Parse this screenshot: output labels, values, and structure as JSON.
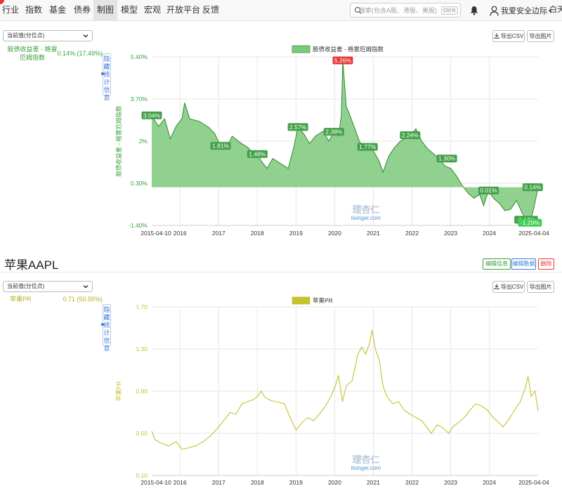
{
  "nav": {
    "items": [
      "行业",
      "指数",
      "基金",
      "债券",
      "制图",
      "模型",
      "宏观",
      "开放平台",
      "反馈"
    ],
    "active_index": 4,
    "search_placeholder": "搜索(包含A股、港股、美股)",
    "shortcut": "Ctrl K",
    "user_name": "我爱安全边际",
    "theme_label": "白天"
  },
  "panel1": {
    "select_value": "当前值(分位点)",
    "legend_label": "股债收益差 - 格雷厄姆指数",
    "legend_value": "0.14% (17.49%)",
    "hide_stats": "隐藏统计信息",
    "export_csv": "导出CSV",
    "export_img": "导出图片"
  },
  "section": {
    "title": "苹果AAPL",
    "edit_info": "编辑信息",
    "edit_data": "编辑数据",
    "delete": "删除"
  },
  "panel2": {
    "select_value": "当前值(分位点)",
    "legend_label": "苹果PR",
    "legend_value": "0.71 (50.55%)",
    "hide_stats": "隐藏统计信息",
    "export_csv": "导出CSV",
    "export_img": "导出图片"
  },
  "watermark": {
    "cn": "理杏仁",
    "en": "lixinger.com"
  },
  "colors": {
    "green": "#3aa03a",
    "green_fill": "#7cc97c",
    "yellow": "#c6c12e",
    "red": "#e53935",
    "blue": "#3a78d8"
  },
  "chart_data": [
    {
      "type": "area",
      "legend": "股债收益差 - 格雷厄姆指数",
      "ylabel": "股债收益差 - 格雷厄姆指数",
      "xlabel": "",
      "yticks": [
        "5.40%",
        "3.70%",
        "2%",
        "0.30%",
        "-1.40%"
      ],
      "ylim": [
        -1.4,
        5.4
      ],
      "baseline": 0.14,
      "xticks": [
        "2015-04-10",
        "2016",
        "2017",
        "2018",
        "2019",
        "2020",
        "2021",
        "2022",
        "2023",
        "2024",
        "2025-04-04"
      ],
      "x_range": [
        2015.27,
        2025.26
      ],
      "points": [
        [
          2015.27,
          3.0
        ],
        [
          2015.45,
          2.6
        ],
        [
          2015.6,
          2.9
        ],
        [
          2015.75,
          2.1
        ],
        [
          2015.9,
          2.6
        ],
        [
          2016.05,
          2.9
        ],
        [
          2016.12,
          3.55
        ],
        [
          2016.25,
          2.9
        ],
        [
          2016.5,
          2.8
        ],
        [
          2016.75,
          2.55
        ],
        [
          2016.9,
          2.3
        ],
        [
          2017.05,
          1.81
        ],
        [
          2017.2,
          1.7
        ],
        [
          2017.35,
          2.2
        ],
        [
          2017.55,
          1.95
        ],
        [
          2017.75,
          1.75
        ],
        [
          2017.9,
          1.5
        ],
        [
          2018.0,
          1.48
        ],
        [
          2018.1,
          1.2
        ],
        [
          2018.25,
          0.9
        ],
        [
          2018.4,
          1.3
        ],
        [
          2018.6,
          1.1
        ],
        [
          2018.8,
          0.9
        ],
        [
          2018.95,
          1.8
        ],
        [
          2019.05,
          2.57
        ],
        [
          2019.2,
          2.3
        ],
        [
          2019.35,
          1.9
        ],
        [
          2019.5,
          2.2
        ],
        [
          2019.7,
          2.4
        ],
        [
          2019.85,
          2.0
        ],
        [
          2019.98,
          2.38
        ],
        [
          2020.1,
          2.2
        ],
        [
          2020.17,
          3.0
        ],
        [
          2020.21,
          5.26
        ],
        [
          2020.3,
          3.4
        ],
        [
          2020.38,
          3.1
        ],
        [
          2020.5,
          2.6
        ],
        [
          2020.65,
          1.95
        ],
        [
          2020.85,
          1.77
        ],
        [
          2021.0,
          1.6
        ],
        [
          2021.15,
          1.2
        ],
        [
          2021.25,
          0.75
        ],
        [
          2021.4,
          1.4
        ],
        [
          2021.55,
          1.75
        ],
        [
          2021.7,
          2.0
        ],
        [
          2021.85,
          2.15
        ],
        [
          2021.95,
          2.24
        ],
        [
          2022.1,
          2.5
        ],
        [
          2022.25,
          2.0
        ],
        [
          2022.4,
          1.7
        ],
        [
          2022.55,
          1.5
        ],
        [
          2022.7,
          1.3
        ],
        [
          2022.85,
          1.0
        ],
        [
          2023.0,
          0.9
        ],
        [
          2023.15,
          0.6
        ],
        [
          2023.3,
          0.2
        ],
        [
          2023.45,
          -0.1
        ],
        [
          2023.6,
          -0.3
        ],
        [
          2023.75,
          -0.15
        ],
        [
          2023.85,
          -0.6
        ],
        [
          2023.98,
          0.01
        ],
        [
          2024.1,
          -0.3
        ],
        [
          2024.25,
          -0.5
        ],
        [
          2024.4,
          -0.8
        ],
        [
          2024.55,
          -0.75
        ],
        [
          2024.7,
          -0.4
        ],
        [
          2024.85,
          -0.9
        ],
        [
          2024.95,
          -1.17
        ],
        [
          2025.05,
          -1.29
        ],
        [
          2025.15,
          -0.7
        ],
        [
          2025.26,
          0.14
        ]
      ],
      "labels": [
        {
          "x": 2015.27,
          "y": 3.04,
          "text": "3.04%"
        },
        {
          "x": 2017.05,
          "y": 1.81,
          "text": "1.81%"
        },
        {
          "x": 2018.0,
          "y": 1.48,
          "text": "1.48%"
        },
        {
          "x": 2019.05,
          "y": 2.57,
          "text": "2.57%"
        },
        {
          "x": 2019.98,
          "y": 2.38,
          "text": "2.38%"
        },
        {
          "x": 2020.21,
          "y": 5.26,
          "text": "5.26%",
          "kind": "max"
        },
        {
          "x": 2020.85,
          "y": 1.77,
          "text": "1.77%"
        },
        {
          "x": 2021.95,
          "y": 2.24,
          "text": "2.24%"
        },
        {
          "x": 2022.9,
          "y": 1.3,
          "text": "1.30%"
        },
        {
          "x": 2023.98,
          "y": 0.01,
          "text": "0.01%"
        },
        {
          "x": 2025.12,
          "y": 0.14,
          "text": "0.14%"
        },
        {
          "x": 2024.95,
          "y": -1.17,
          "text": "-1.17%"
        },
        {
          "x": 2025.05,
          "y": -1.29,
          "text": "-1.29%",
          "kind": "min"
        }
      ]
    },
    {
      "type": "line",
      "legend": "苹果PR",
      "ylabel": "苹果PR",
      "xlabel": "",
      "yticks": [
        "1.70",
        "1.30",
        "0.90",
        "0.50",
        "0.10"
      ],
      "ylim": [
        0.1,
        1.7
      ],
      "xticks": [
        "2015-04-10",
        "2016",
        "2017",
        "2018",
        "2019",
        "2020",
        "2021",
        "2022",
        "2023",
        "2024",
        "2025-04-04"
      ],
      "x_range": [
        2015.27,
        2025.26
      ],
      "points": [
        [
          2015.27,
          0.52
        ],
        [
          2015.35,
          0.44
        ],
        [
          2015.5,
          0.41
        ],
        [
          2015.7,
          0.38
        ],
        [
          2015.9,
          0.42
        ],
        [
          2016.05,
          0.35
        ],
        [
          2016.2,
          0.36
        ],
        [
          2016.4,
          0.38
        ],
        [
          2016.6,
          0.42
        ],
        [
          2016.8,
          0.48
        ],
        [
          2017.0,
          0.56
        ],
        [
          2017.15,
          0.63
        ],
        [
          2017.3,
          0.7
        ],
        [
          2017.45,
          0.68
        ],
        [
          2017.6,
          0.78
        ],
        [
          2017.75,
          0.8
        ],
        [
          2017.9,
          0.82
        ],
        [
          2018.0,
          0.85
        ],
        [
          2018.1,
          0.9
        ],
        [
          2018.2,
          0.84
        ],
        [
          2018.35,
          0.81
        ],
        [
          2018.5,
          0.8
        ],
        [
          2018.7,
          0.78
        ],
        [
          2018.85,
          0.65
        ],
        [
          2019.0,
          0.53
        ],
        [
          2019.15,
          0.6
        ],
        [
          2019.3,
          0.65
        ],
        [
          2019.45,
          0.62
        ],
        [
          2019.6,
          0.68
        ],
        [
          2019.75,
          0.75
        ],
        [
          2019.9,
          0.85
        ],
        [
          2020.0,
          0.93
        ],
        [
          2020.1,
          1.05
        ],
        [
          2020.2,
          0.8
        ],
        [
          2020.3,
          0.95
        ],
        [
          2020.45,
          1.0
        ],
        [
          2020.6,
          1.25
        ],
        [
          2020.7,
          1.32
        ],
        [
          2020.8,
          1.25
        ],
        [
          2020.9,
          1.35
        ],
        [
          2020.97,
          1.48
        ],
        [
          2021.05,
          1.3
        ],
        [
          2021.15,
          1.2
        ],
        [
          2021.25,
          0.95
        ],
        [
          2021.35,
          0.85
        ],
        [
          2021.5,
          0.78
        ],
        [
          2021.65,
          0.8
        ],
        [
          2021.8,
          0.72
        ],
        [
          2021.95,
          0.68
        ],
        [
          2022.1,
          0.65
        ],
        [
          2022.25,
          0.62
        ],
        [
          2022.4,
          0.55
        ],
        [
          2022.5,
          0.5
        ],
        [
          2022.65,
          0.58
        ],
        [
          2022.8,
          0.55
        ],
        [
          2022.95,
          0.5
        ],
        [
          2023.05,
          0.56
        ],
        [
          2023.2,
          0.6
        ],
        [
          2023.35,
          0.65
        ],
        [
          2023.5,
          0.72
        ],
        [
          2023.65,
          0.78
        ],
        [
          2023.8,
          0.76
        ],
        [
          2023.95,
          0.72
        ],
        [
          2024.1,
          0.65
        ],
        [
          2024.25,
          0.6
        ],
        [
          2024.35,
          0.56
        ],
        [
          2024.5,
          0.63
        ],
        [
          2024.65,
          0.72
        ],
        [
          2024.8,
          0.8
        ],
        [
          2024.92,
          0.92
        ],
        [
          2025.0,
          1.04
        ],
        [
          2025.08,
          0.85
        ],
        [
          2025.18,
          0.9
        ],
        [
          2025.26,
          0.71
        ]
      ]
    }
  ]
}
